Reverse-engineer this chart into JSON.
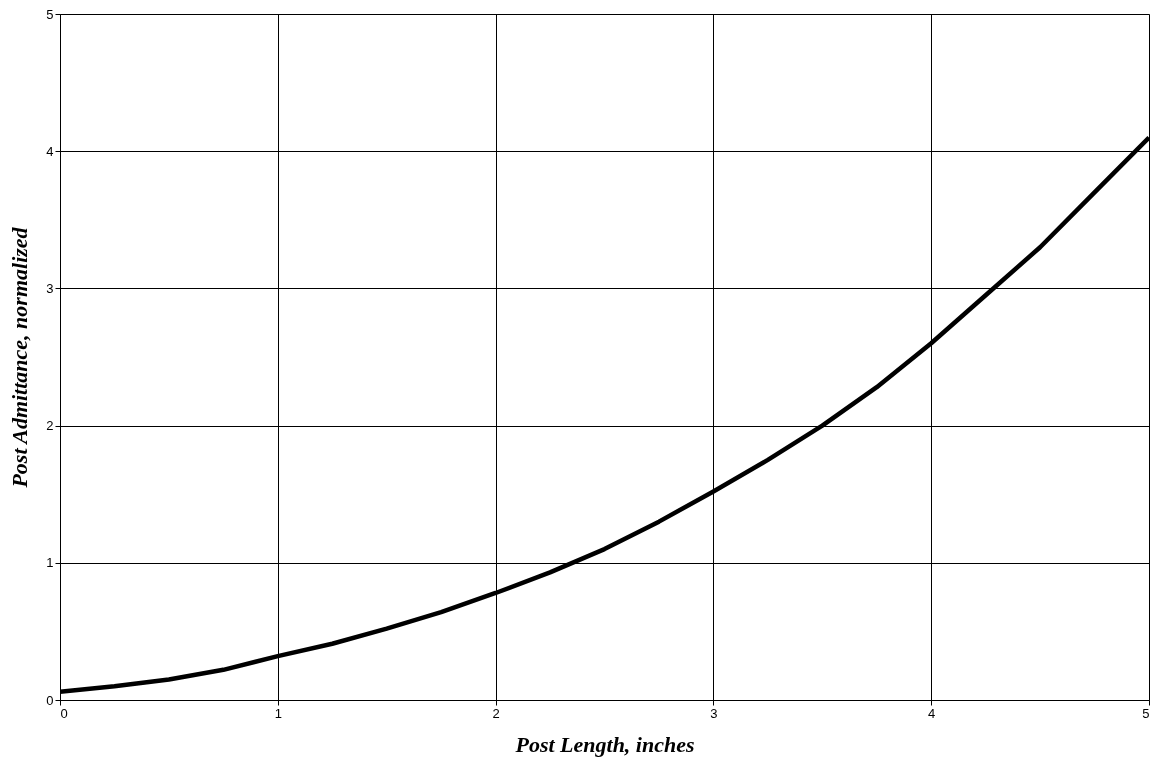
{
  "chart_data": {
    "type": "line",
    "xlabel": "Post Length, inches",
    "ylabel": "Post Admittance, normalized",
    "x": [
      0,
      0.25,
      0.5,
      0.75,
      1,
      1.25,
      1.5,
      1.75,
      2,
      2.25,
      2.5,
      2.75,
      3,
      3.25,
      3.5,
      3.75,
      4,
      4.25,
      4.5,
      4.75,
      5
    ],
    "series": [
      {
        "color": "#000000",
        "values": [
          0.06,
          0.1,
          0.15,
          0.22,
          0.32,
          0.41,
          0.52,
          0.64,
          0.78,
          0.93,
          1.1,
          1.3,
          1.52,
          1.75,
          2.0,
          2.28,
          2.6,
          2.95,
          3.3,
          3.7,
          4.1
        ]
      }
    ],
    "xlim": [
      0,
      5
    ],
    "ylim": [
      0,
      5
    ],
    "xticks": [
      0,
      1,
      2,
      3,
      4,
      5
    ],
    "yticks": [
      0,
      1,
      2,
      3,
      4,
      5
    ],
    "grid": true,
    "marker": "none",
    "line_style": "solid"
  }
}
